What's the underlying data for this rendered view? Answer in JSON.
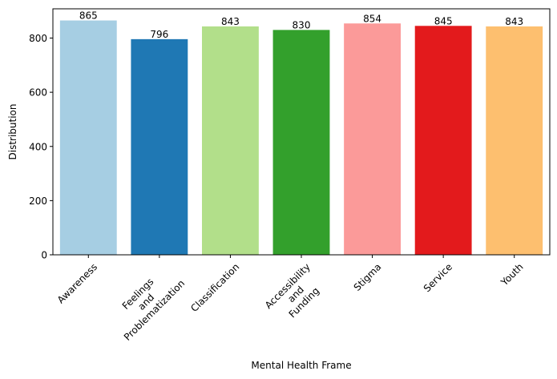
{
  "chart_data": {
    "type": "bar",
    "xlabel": "Mental Health Frame",
    "ylabel": "Distribution",
    "ylim": [
      0,
      908
    ],
    "yticks": [
      0,
      200,
      400,
      600,
      800
    ],
    "categories": [
      [
        "Awareness"
      ],
      [
        "Feelings",
        "and",
        "Problematization"
      ],
      [
        "Classification"
      ],
      [
        "Accessibility",
        "and",
        "Funding"
      ],
      [
        "Stigma"
      ],
      [
        "Service"
      ],
      [
        "Youth"
      ]
    ],
    "values": [
      865,
      796,
      843,
      830,
      854,
      845,
      843
    ],
    "colors": [
      "#a6cee3",
      "#1f78b4",
      "#b2df8a",
      "#33a02c",
      "#fb9a99",
      "#e31a1c",
      "#fdbf6f"
    ],
    "grid": false,
    "legend": "none",
    "xtick_rotation": 45
  }
}
